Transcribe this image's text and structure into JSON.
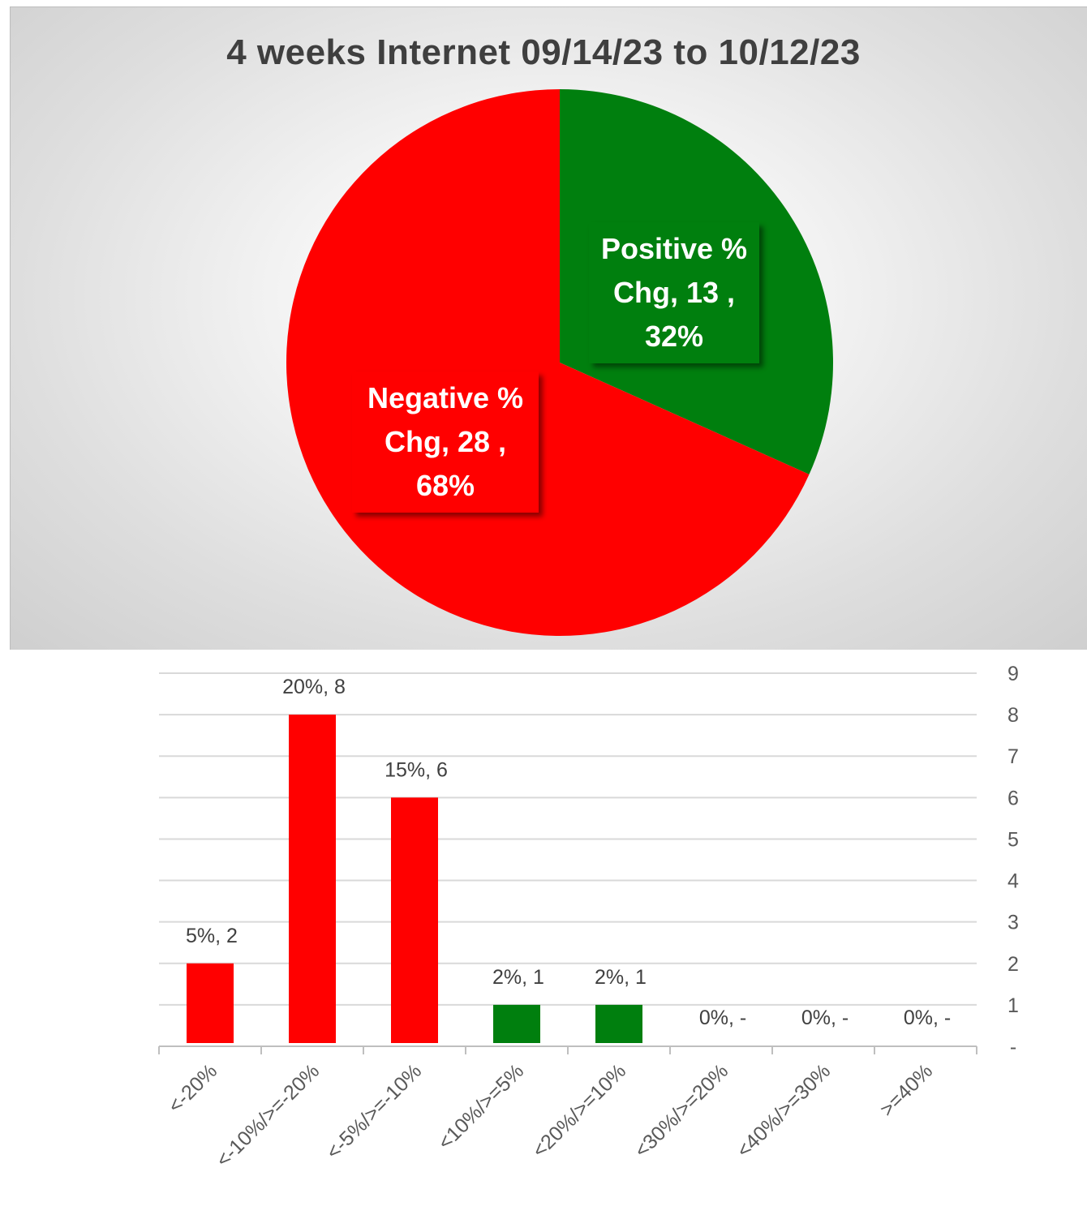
{
  "chart_data": [
    {
      "type": "pie",
      "title": "4 weeks Internet 09/14/23 to 10/12/23",
      "slices": [
        {
          "name": "Positive % Chg",
          "value": 13,
          "percent": "32%",
          "color": "#007f0e"
        },
        {
          "name": "Negative % Chg",
          "value": 28,
          "percent": "68%",
          "color": "#ff0000"
        }
      ],
      "labels": [
        {
          "lines": [
            "Positive %",
            "Chg,  13 ,",
            "32%"
          ]
        },
        {
          "lines": [
            "Negative %",
            "Chg,  28 ,",
            "68%"
          ]
        }
      ]
    },
    {
      "type": "bar",
      "categories": [
        "<-20%",
        "<-10%/>=-20%",
        "<-5%/>=-10%",
        "<10%/>=5%",
        "<20%/>=10%",
        "<30%/>=20%",
        "<40%/>=30%",
        ">=40%"
      ],
      "values": [
        2,
        8,
        6,
        1,
        1,
        0,
        0,
        0
      ],
      "data_labels": [
        "5%,  2",
        "20%,  8",
        "15%,  6",
        "2%,  1",
        "2%,  1",
        "0%,  -",
        "0%,  -",
        "0%,  -"
      ],
      "colors": [
        "#ff0000",
        "#ff0000",
        "#ff0000",
        "#007f0e",
        "#007f0e",
        "#007f0e",
        "#007f0e",
        "#007f0e"
      ],
      "ylim": [
        0,
        9
      ],
      "yticks": [
        "-",
        "1",
        "2",
        "3",
        "4",
        "5",
        "6",
        "7",
        "8",
        "9"
      ],
      "y_axis_position": "right",
      "grid": true
    }
  ]
}
